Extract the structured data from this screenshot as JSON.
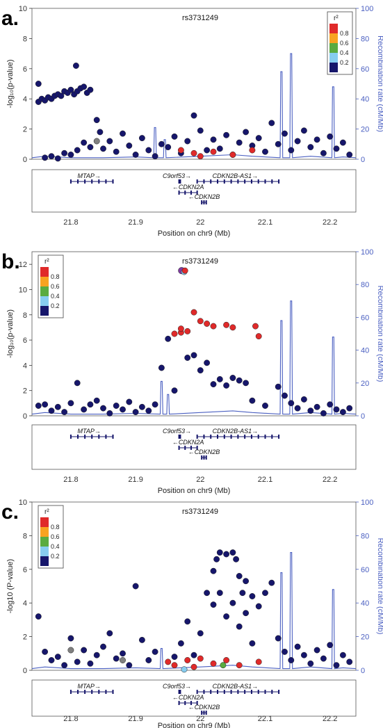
{
  "chart_data": [
    {
      "panel": "a.",
      "type": "scatter",
      "title": "rs3731249",
      "xlabel": "Position on chr9 (Mb)",
      "ylabel": "-log₁₀(p-value)",
      "ylabel_right": "Recombination rate (cM/Mb)",
      "xlim": [
        21.74,
        22.24
      ],
      "ylim": [
        0,
        10
      ],
      "ylim_right": [
        0,
        100
      ],
      "x_ticks": [
        "21.8",
        "21.9",
        "22",
        "22.1",
        "22.2"
      ],
      "y_ticks": [
        "0",
        "2",
        "4",
        "6",
        "8",
        "10"
      ],
      "y_right_ticks": [
        "0",
        "20",
        "40",
        "60",
        "80",
        "100"
      ],
      "legend": {
        "title": "r²",
        "placement": "top-right",
        "labels": [
          "0.8",
          "0.6",
          "0.4",
          "0.2"
        ]
      },
      "lead_snp": [],
      "points": [
        [
          21.75,
          3.8,
          0
        ],
        [
          21.755,
          4.0,
          0
        ],
        [
          21.76,
          3.9,
          0
        ],
        [
          21.765,
          4.1,
          0
        ],
        [
          21.77,
          4.0,
          0
        ],
        [
          21.775,
          4.2,
          0
        ],
        [
          21.78,
          4.3,
          0
        ],
        [
          21.785,
          4.2,
          0
        ],
        [
          21.79,
          4.5,
          0
        ],
        [
          21.795,
          4.4,
          0
        ],
        [
          21.8,
          4.6,
          0
        ],
        [
          21.805,
          4.3,
          0
        ],
        [
          21.81,
          4.5,
          0
        ],
        [
          21.815,
          4.7,
          0
        ],
        [
          21.82,
          4.8,
          0
        ],
        [
          21.825,
          4.4,
          0
        ],
        [
          21.83,
          4.6,
          0
        ],
        [
          21.808,
          6.2,
          0
        ],
        [
          21.75,
          5.0,
          0
        ],
        [
          21.76,
          0.1,
          0
        ],
        [
          21.77,
          0.2,
          0
        ],
        [
          21.78,
          0.05,
          0
        ],
        [
          21.79,
          0.4,
          0
        ],
        [
          21.8,
          0.3,
          0
        ],
        [
          21.81,
          0.6,
          0
        ],
        [
          21.82,
          1.1,
          0
        ],
        [
          21.83,
          0.8,
          0
        ],
        [
          21.84,
          2.6,
          0
        ],
        [
          21.845,
          1.8,
          0
        ],
        [
          21.85,
          0.7,
          0
        ],
        [
          21.86,
          1.2,
          0
        ],
        [
          21.87,
          0.5,
          0
        ],
        [
          21.88,
          1.7,
          0
        ],
        [
          21.89,
          0.9,
          0
        ],
        [
          21.9,
          0.3,
          0
        ],
        [
          21.91,
          1.4,
          0
        ],
        [
          21.92,
          0.6,
          0
        ],
        [
          21.93,
          0.2,
          0
        ],
        [
          21.94,
          1.0,
          0
        ],
        [
          21.95,
          0.8,
          0
        ],
        [
          21.96,
          1.5,
          0
        ],
        [
          21.97,
          0.4,
          0
        ],
        [
          21.98,
          1.2,
          0
        ],
        [
          21.99,
          2.9,
          0
        ],
        [
          22.0,
          1.9,
          0
        ],
        [
          22.01,
          0.6,
          0
        ],
        [
          22.02,
          1.3,
          0
        ],
        [
          22.03,
          0.7,
          0
        ],
        [
          22.04,
          1.6,
          0
        ],
        [
          22.05,
          0.3,
          0
        ],
        [
          22.06,
          1.1,
          0
        ],
        [
          22.07,
          1.8,
          0
        ],
        [
          22.08,
          0.9,
          0
        ],
        [
          22.09,
          1.4,
          0
        ],
        [
          22.1,
          0.5,
          0
        ],
        [
          22.11,
          2.4,
          0
        ],
        [
          22.12,
          1.0,
          0
        ],
        [
          22.13,
          1.7,
          0
        ],
        [
          22.14,
          0.6,
          0
        ],
        [
          22.15,
          1.2,
          0
        ],
        [
          22.16,
          1.9,
          0
        ],
        [
          22.17,
          0.8,
          0
        ],
        [
          22.18,
          1.3,
          0
        ],
        [
          22.19,
          0.4,
          0
        ],
        [
          22.2,
          1.5,
          0
        ],
        [
          22.21,
          0.7,
          0
        ],
        [
          22.22,
          1.1,
          0
        ],
        [
          22.23,
          0.3,
          0
        ],
        [
          21.84,
          1.2,
          5
        ],
        [
          21.97,
          0.6,
          4
        ],
        [
          21.99,
          0.4,
          4
        ],
        [
          22.0,
          0.2,
          4
        ],
        [
          22.02,
          0.5,
          4
        ],
        [
          22.05,
          0.3,
          4
        ],
        [
          22.08,
          0.6,
          4
        ]
      ],
      "recombination_peaks": [
        [
          21.93,
          21
        ],
        [
          21.945,
          13
        ],
        [
          22.125,
          58
        ],
        [
          22.14,
          70
        ],
        [
          22.205,
          48
        ]
      ]
    },
    {
      "panel": "b.",
      "type": "scatter",
      "title": "rs3731249",
      "xlabel": "Position on chr9 (Mb)",
      "ylabel": "-log₁₀(p-value)",
      "ylabel_right": "Recombination rate (cM/Mb)",
      "xlim": [
        21.74,
        22.24
      ],
      "ylim": [
        0,
        13
      ],
      "ylim_right": [
        0,
        100
      ],
      "x_ticks": [
        "21.8",
        "21.9",
        "22",
        "22.1",
        "22.2"
      ],
      "y_ticks": [
        "0",
        "2",
        "4",
        "6",
        "8",
        "10",
        "12"
      ],
      "y_right_ticks": [
        "0",
        "20",
        "40",
        "60",
        "80",
        "100"
      ],
      "legend": {
        "title": "r²",
        "placement": "top-left",
        "labels": [
          "0.8",
          "0.6",
          "0.4",
          "0.2"
        ]
      },
      "lead_snp": [
        21.973,
        11.5
      ],
      "points": [
        [
          21.971,
          11.5,
          6
        ],
        [
          21.975,
          11.4,
          1
        ],
        [
          21.96,
          6.5,
          4
        ],
        [
          21.97,
          6.6,
          4
        ],
        [
          21.98,
          6.7,
          4
        ],
        [
          21.99,
          8.2,
          4
        ],
        [
          22.0,
          7.5,
          4
        ],
        [
          22.01,
          7.3,
          4
        ],
        [
          22.02,
          7.1,
          4
        ],
        [
          22.04,
          7.2,
          4
        ],
        [
          22.05,
          7.0,
          4
        ],
        [
          22.085,
          7.1,
          4
        ],
        [
          22.09,
          6.3,
          4
        ],
        [
          21.97,
          6.9,
          4
        ],
        [
          21.95,
          6.1,
          0
        ],
        [
          21.98,
          4.6,
          0
        ],
        [
          21.99,
          4.8,
          0
        ],
        [
          22.0,
          3.6,
          0
        ],
        [
          22.01,
          4.2,
          0
        ],
        [
          22.02,
          2.5,
          0
        ],
        [
          22.03,
          2.9,
          0
        ],
        [
          22.04,
          2.4,
          0
        ],
        [
          22.05,
          3.0,
          0
        ],
        [
          22.06,
          2.8,
          0
        ],
        [
          22.07,
          2.6,
          0
        ],
        [
          21.94,
          3.8,
          0
        ],
        [
          21.96,
          2.0,
          0
        ],
        [
          21.75,
          0.8,
          0
        ],
        [
          21.76,
          0.9,
          0
        ],
        [
          21.77,
          0.4,
          0
        ],
        [
          21.78,
          0.7,
          0
        ],
        [
          21.79,
          0.3,
          0
        ],
        [
          21.8,
          1.0,
          0
        ],
        [
          21.81,
          2.6,
          0
        ],
        [
          21.82,
          0.5,
          0
        ],
        [
          21.83,
          0.9,
          0
        ],
        [
          21.84,
          1.2,
          0
        ],
        [
          21.85,
          0.6,
          0
        ],
        [
          21.86,
          0.2,
          0
        ],
        [
          21.87,
          0.8,
          0
        ],
        [
          21.88,
          0.5,
          0
        ],
        [
          21.89,
          1.1,
          0
        ],
        [
          21.9,
          0.3,
          0
        ],
        [
          21.91,
          0.7,
          0
        ],
        [
          21.92,
          0.4,
          0
        ],
        [
          21.93,
          0.9,
          0
        ],
        [
          22.08,
          1.2,
          0
        ],
        [
          22.1,
          0.8,
          0
        ],
        [
          22.12,
          2.3,
          0
        ],
        [
          22.13,
          1.6,
          0
        ],
        [
          22.14,
          1.0,
          0
        ],
        [
          22.15,
          0.6,
          0
        ],
        [
          22.16,
          1.3,
          0
        ],
        [
          22.17,
          0.4,
          0
        ],
        [
          22.18,
          0.7,
          0
        ],
        [
          22.19,
          0.2,
          0
        ],
        [
          22.2,
          0.9,
          0
        ],
        [
          22.21,
          0.5,
          0
        ],
        [
          22.22,
          0.3,
          0
        ],
        [
          22.23,
          0.6,
          0
        ]
      ],
      "recombination_peaks": [
        [
          21.94,
          21
        ],
        [
          21.95,
          13
        ],
        [
          22.125,
          58
        ],
        [
          22.14,
          70
        ],
        [
          22.205,
          48
        ]
      ]
    },
    {
      "panel": "c.",
      "type": "scatter",
      "title": "rs3731249",
      "xlabel": "Position on chr9 (Mb)",
      "ylabel": "-log10 (P-value)",
      "ylabel_right": "Recombination rate (cM/Mb)",
      "xlim": [
        21.74,
        22.24
      ],
      "ylim": [
        0,
        10
      ],
      "ylim_right": [
        0,
        100
      ],
      "x_ticks": [
        "21.8",
        "21.9",
        "22",
        "22.1",
        "22.2"
      ],
      "y_ticks": [
        "0",
        "2",
        "4",
        "6",
        "8",
        "10"
      ],
      "y_right_ticks": [
        "0",
        "20",
        "40",
        "60",
        "80",
        "100"
      ],
      "legend": {
        "title": "r²",
        "placement": "top-left",
        "labels": [
          "0.8",
          "0.6",
          "0.4",
          "0.2"
        ]
      },
      "lead_snp": [],
      "points": [
        [
          21.75,
          3.2,
          0
        ],
        [
          21.76,
          1.1,
          0
        ],
        [
          21.77,
          0.6,
          0
        ],
        [
          21.78,
          0.8,
          0
        ],
        [
          21.79,
          0.3,
          0
        ],
        [
          21.8,
          1.9,
          0
        ],
        [
          21.81,
          0.5,
          0
        ],
        [
          21.82,
          1.2,
          0
        ],
        [
          21.83,
          0.4,
          0
        ],
        [
          21.84,
          0.9,
          0
        ],
        [
          21.85,
          1.4,
          0
        ],
        [
          21.86,
          2.2,
          0
        ],
        [
          21.87,
          0.7,
          0
        ],
        [
          21.88,
          1.0,
          0
        ],
        [
          21.89,
          0.3,
          0
        ],
        [
          21.9,
          5.0,
          0
        ],
        [
          21.91,
          1.8,
          0
        ],
        [
          21.92,
          0.6,
          0
        ],
        [
          21.93,
          1.1,
          0
        ],
        [
          21.96,
          0.8,
          0
        ],
        [
          21.97,
          1.6,
          0
        ],
        [
          21.98,
          2.9,
          0
        ],
        [
          21.99,
          0.9,
          0
        ],
        [
          22.0,
          2.2,
          0
        ],
        [
          22.01,
          4.6,
          0
        ],
        [
          22.02,
          5.9,
          0
        ],
        [
          22.025,
          6.6,
          0
        ],
        [
          22.03,
          7.0,
          0
        ],
        [
          22.04,
          6.9,
          0
        ],
        [
          22.05,
          7.0,
          0
        ],
        [
          22.055,
          6.6,
          0
        ],
        [
          22.06,
          5.6,
          0
        ],
        [
          22.065,
          4.6,
          0
        ],
        [
          22.07,
          5.3,
          0
        ],
        [
          22.08,
          4.4,
          0
        ],
        [
          22.09,
          3.8,
          0
        ],
        [
          22.1,
          4.6,
          0
        ],
        [
          22.11,
          5.2,
          0
        ],
        [
          22.02,
          3.9,
          0
        ],
        [
          22.03,
          4.6,
          0
        ],
        [
          22.04,
          3.2,
          0
        ],
        [
          22.05,
          4.0,
          0
        ],
        [
          22.06,
          2.6,
          0
        ],
        [
          22.07,
          3.4,
          0
        ],
        [
          22.08,
          1.6,
          0
        ],
        [
          22.12,
          1.9,
          0
        ],
        [
          22.13,
          1.1,
          0
        ],
        [
          22.14,
          0.6,
          0
        ],
        [
          22.15,
          1.4,
          0
        ],
        [
          22.16,
          0.9,
          0
        ],
        [
          22.17,
          0.4,
          0
        ],
        [
          22.18,
          1.2,
          0
        ],
        [
          22.19,
          0.7,
          0
        ],
        [
          22.2,
          1.5,
          0
        ],
        [
          22.21,
          0.3,
          0
        ],
        [
          22.22,
          0.9,
          0
        ],
        [
          22.23,
          0.5,
          0
        ],
        [
          21.95,
          0.5,
          4
        ],
        [
          21.96,
          0.3,
          4
        ],
        [
          21.98,
          0.6,
          4
        ],
        [
          21.99,
          0.2,
          4
        ],
        [
          22.0,
          0.7,
          4
        ],
        [
          22.02,
          0.4,
          4
        ],
        [
          22.04,
          0.6,
          4
        ],
        [
          22.06,
          0.3,
          4
        ],
        [
          22.09,
          0.5,
          4
        ],
        [
          21.975,
          0.05,
          1
        ],
        [
          22.035,
          0.3,
          2
        ],
        [
          21.8,
          1.2,
          5
        ],
        [
          21.88,
          0.6,
          5
        ]
      ],
      "recombination_peaks": [
        [
          21.94,
          13
        ],
        [
          22.125,
          58
        ],
        [
          22.14,
          70
        ],
        [
          22.205,
          48
        ]
      ]
    }
  ],
  "panel_labels": [
    "a.",
    "b.",
    "c."
  ],
  "genes": [
    {
      "name": "MTAP→",
      "label": "MTAP",
      "arrow": "→",
      "start": 21.8,
      "end": 21.865,
      "row": 0
    },
    {
      "name": "C9orf53→",
      "label": "C9orf53",
      "arrow": "→",
      "start": 21.967,
      "end": 21.969,
      "row": 0
    },
    {
      "name": "CDKN2B-AS1→",
      "label": "CDKN2B-AS1",
      "arrow": "→",
      "start": 21.995,
      "end": 22.121,
      "row": 0
    },
    {
      "name": "←CDKN2A",
      "label": "CDKN2A",
      "arrow": "←",
      "start": 21.967,
      "end": 21.995,
      "row": 1
    },
    {
      "name": "←CDKN2B",
      "label": "CDKN2B",
      "arrow": "←",
      "start": 22.002,
      "end": 22.009,
      "row": 2
    }
  ],
  "colors": {
    "r2_bins": [
      "#16166b",
      "#87cdf0",
      "#5aab40",
      "#f8a321",
      "#e02a2a"
    ],
    "lead": "#7e3ba0",
    "unknown": "#808080",
    "recombination": "#4a5fc1",
    "gene": "#16166b"
  }
}
